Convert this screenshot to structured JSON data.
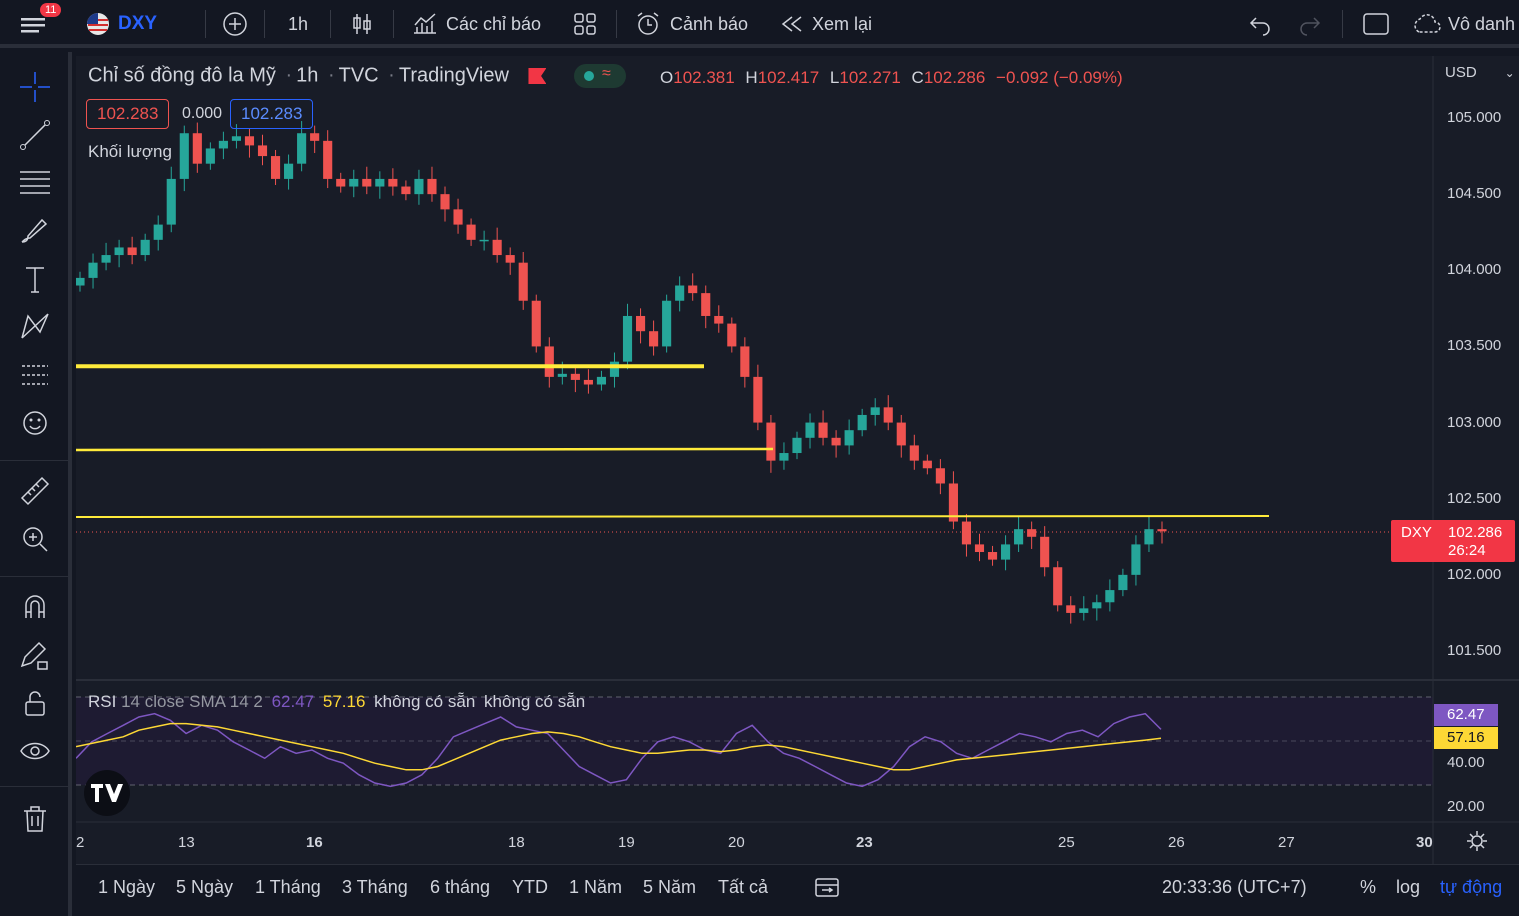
{
  "topbar": {
    "menu_badge": "11",
    "symbol": "DXY",
    "interval": "1h",
    "indicators": "Các chỉ báo",
    "alert": "Cảnh báo",
    "replay": "Xem lại",
    "account": "Vô danh"
  },
  "legend": {
    "title": "Chỉ số đồng đô la Mỹ",
    "interval": "1h",
    "source": "TVC",
    "provider": "TradingView",
    "o_label": "O",
    "o": "102.381",
    "h_label": "H",
    "h": "102.417",
    "l_label": "L",
    "l": "102.271",
    "c_label": "C",
    "c": "102.286",
    "change": "−0.092 (−0.09%)",
    "bid": "102.283",
    "spread": "0.000",
    "ask": "102.283",
    "volume": "Khối lượng"
  },
  "rsi_legend": {
    "name": "RSI",
    "params": "14 close SMA 14 2",
    "rsi": "62.47",
    "sma": "57.16",
    "na1": "không có sẵn",
    "na2": "không có sẵn"
  },
  "price_axis": {
    "currency": "USD",
    "labels": [
      "105.000",
      "104.500",
      "104.000",
      "103.500",
      "103.000",
      "102.500",
      "102.000",
      "101.500"
    ],
    "current_symbol": "DXY",
    "current_price": "102.286",
    "countdown": "26:24"
  },
  "rsi_axis": {
    "rsi_value": "62.47",
    "sma_value": "57.16",
    "labels": [
      "40.00",
      "20.00"
    ]
  },
  "time_axis": [
    "2",
    "13",
    "16",
    "18",
    "19",
    "20",
    "23",
    "25",
    "26",
    "27",
    "30"
  ],
  "bottombar": {
    "ranges": [
      "1 Ngày",
      "5 Ngày",
      "1 Tháng",
      "3 Tháng",
      "6 tháng",
      "YTD",
      "1 Năm",
      "5 Năm",
      "Tất cả"
    ],
    "clock": "20:33:36 (UTC+7)",
    "percent": "%",
    "log": "log",
    "auto": "tự động"
  },
  "colors": {
    "up": "#26a69a",
    "down": "#ef5350",
    "level": "#ffeb3b",
    "rsi": "#7e57c2",
    "sma": "#fdd835"
  },
  "chart_data": {
    "type": "candlestick",
    "price_range": [
      101.3,
      105.2
    ],
    "hlines": [
      103.37,
      102.82,
      102.38
    ],
    "closes": [
      103.95,
      104.05,
      104.1,
      104.15,
      104.1,
      104.2,
      104.3,
      104.6,
      104.9,
      104.7,
      104.8,
      104.85,
      104.88,
      104.82,
      104.75,
      104.6,
      104.7,
      104.9,
      104.85,
      104.6,
      104.55,
      104.6,
      104.55,
      104.6,
      104.55,
      104.5,
      104.6,
      104.5,
      104.4,
      104.3,
      104.2,
      104.2,
      104.1,
      104.05,
      103.8,
      103.5,
      103.3,
      103.32,
      103.28,
      103.25,
      103.3,
      103.4,
      103.7,
      103.6,
      103.5,
      103.8,
      103.9,
      103.85,
      103.7,
      103.65,
      103.5,
      103.3,
      103.0,
      102.75,
      102.8,
      102.9,
      103.0,
      102.9,
      102.85,
      102.95,
      103.05,
      103.1,
      103.0,
      102.85,
      102.75,
      102.7,
      102.6,
      102.35,
      102.2,
      102.15,
      102.1,
      102.2,
      102.3,
      102.25,
      102.05,
      101.8,
      101.75,
      101.78,
      101.82,
      101.9,
      102.0,
      102.2,
      102.3,
      102.286
    ],
    "rsi_range": [
      10,
      90
    ],
    "rsi": [
      45,
      55,
      60,
      65,
      70,
      72,
      68,
      60,
      65,
      62,
      55,
      50,
      45,
      52,
      48,
      50,
      45,
      42,
      35,
      30,
      28,
      30,
      35,
      45,
      58,
      62,
      66,
      70,
      64,
      62,
      60,
      50,
      40,
      35,
      30,
      32,
      45,
      55,
      58,
      55,
      50,
      48,
      60,
      65,
      55,
      48,
      45,
      40,
      35,
      30,
      28,
      32,
      40,
      52,
      58,
      55,
      48,
      45,
      50,
      55,
      60,
      58,
      55,
      60,
      62,
      58,
      66,
      70,
      72,
      62.47
    ],
    "rsi_sma": [
      52,
      54,
      56,
      58,
      62,
      64,
      66,
      66,
      65,
      64,
      62,
      60,
      58,
      56,
      54,
      52,
      50,
      48,
      45,
      42,
      40,
      38,
      38,
      40,
      44,
      48,
      52,
      56,
      58,
      60,
      61,
      60,
      58,
      55,
      52,
      50,
      48,
      48,
      49,
      50,
      50,
      49,
      50,
      52,
      53,
      52,
      50,
      48,
      46,
      44,
      42,
      40,
      38,
      38,
      40,
      42,
      44,
      45,
      46,
      47,
      48,
      49,
      50,
      51,
      52,
      53,
      54,
      55,
      56,
      57.16
    ]
  }
}
